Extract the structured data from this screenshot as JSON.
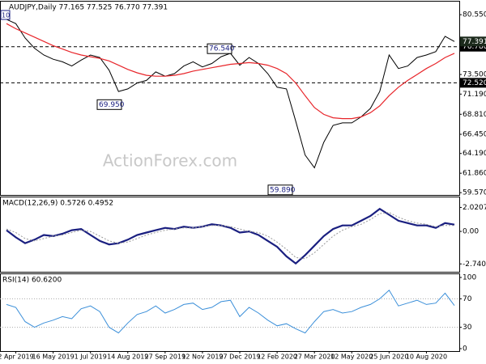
{
  "chart_data": [
    {
      "type": "line",
      "title": "AUDJPY,Daily  77.165 77.525 76.770 77.391",
      "badge": "10",
      "watermark": "ActionForex.com",
      "ylim": [
        59.3,
        81.9
      ],
      "yticks": [
        {
          "value": 80.55,
          "label": "80.550"
        },
        {
          "value": 73.5,
          "label": "73.500"
        },
        {
          "value": 71.19,
          "label": "71.190"
        },
        {
          "value": 68.81,
          "label": "68.810"
        },
        {
          "value": 66.45,
          "label": "66.450"
        },
        {
          "value": 64.19,
          "label": "64.190"
        },
        {
          "value": 61.86,
          "label": "61.860"
        },
        {
          "value": 59.57,
          "label": "59.570"
        }
      ],
      "levels": [
        {
          "value": 76.78,
          "label": "76.780"
        },
        {
          "value": 72.52,
          "label": "72.520"
        }
      ],
      "last": {
        "value": 77.391,
        "label": "77.391"
      },
      "annotations": [
        {
          "value": 76.54,
          "label": "76.540"
        },
        {
          "value": 69.95,
          "label": "69.950"
        },
        {
          "value": 59.89,
          "label": "59.890"
        }
      ],
      "series": [
        {
          "name": "AUDJPY",
          "color": "#000000",
          "width": 1,
          "values": [
            80.0,
            79.5,
            77.8,
            76.6,
            75.8,
            75.3,
            75.0,
            74.5,
            75.2,
            75.8,
            75.5,
            74.0,
            71.5,
            71.8,
            72.5,
            72.8,
            73.8,
            73.3,
            73.6,
            74.5,
            75.0,
            74.4,
            74.8,
            75.6,
            76.0,
            74.6,
            75.5,
            74.8,
            73.6,
            72.0,
            71.8,
            68.0,
            64.0,
            62.5,
            65.5,
            67.5,
            67.8,
            67.8,
            68.5,
            69.5,
            71.5,
            75.8,
            74.2,
            74.5,
            75.5,
            75.8,
            76.2,
            78.0,
            77.39
          ]
        },
        {
          "name": "MA",
          "color": "#e8262b",
          "width": 1.2,
          "values": [
            79.5,
            78.9,
            78.4,
            77.9,
            77.4,
            76.9,
            76.5,
            76.1,
            75.8,
            75.6,
            75.4,
            75.1,
            74.6,
            74.1,
            73.7,
            73.4,
            73.3,
            73.3,
            73.4,
            73.6,
            73.9,
            74.1,
            74.3,
            74.5,
            74.7,
            74.8,
            74.9,
            74.8,
            74.6,
            74.2,
            73.6,
            72.5,
            71.0,
            69.6,
            68.8,
            68.4,
            68.3,
            68.3,
            68.5,
            69.0,
            69.8,
            71.0,
            72.0,
            72.8,
            73.5,
            74.2,
            74.8,
            75.5,
            76.0
          ]
        }
      ]
    },
    {
      "type": "line",
      "title": "MACD(12,26,9) 0.5726 0.4952",
      "ylim": [
        -3.2,
        2.8
      ],
      "yticks": [
        {
          "value": 2.0207,
          "label": "2.0207"
        },
        {
          "value": 0,
          "label": "0.00"
        },
        {
          "value": -2.7404,
          "label": "-2.7404"
        }
      ],
      "series": [
        {
          "name": "MACD",
          "color": "#1a1f80",
          "width": 2.2,
          "values": [
            0.1,
            -0.5,
            -1.0,
            -0.7,
            -0.3,
            -0.4,
            -0.2,
            0.1,
            0.2,
            -0.3,
            -0.8,
            -1.1,
            -1.0,
            -0.7,
            -0.3,
            -0.1,
            0.1,
            0.3,
            0.2,
            0.4,
            0.3,
            0.4,
            0.6,
            0.5,
            0.3,
            -0.1,
            0.0,
            -0.3,
            -0.8,
            -1.3,
            -2.1,
            -2.7,
            -2.0,
            -1.2,
            -0.4,
            0.2,
            0.5,
            0.5,
            0.9,
            1.3,
            1.9,
            1.4,
            0.9,
            0.7,
            0.5,
            0.5,
            0.3,
            0.7,
            0.57
          ]
        },
        {
          "name": "Signal",
          "color": "#999999",
          "width": 1,
          "dash": true,
          "values": [
            0.2,
            -0.1,
            -0.6,
            -0.8,
            -0.6,
            -0.4,
            -0.3,
            -0.1,
            0.1,
            0.0,
            -0.4,
            -0.8,
            -1.0,
            -0.9,
            -0.6,
            -0.3,
            -0.1,
            0.1,
            0.2,
            0.3,
            0.3,
            0.4,
            0.5,
            0.5,
            0.4,
            0.2,
            0.0,
            -0.1,
            -0.4,
            -0.9,
            -1.5,
            -2.2,
            -2.3,
            -1.8,
            -1.1,
            -0.4,
            0.1,
            0.4,
            0.6,
            1.0,
            1.5,
            1.6,
            1.2,
            0.9,
            0.7,
            0.6,
            0.4,
            0.5,
            0.5
          ]
        }
      ]
    },
    {
      "type": "line",
      "title": "RSI(14) 60.6200",
      "ylim": [
        0,
        100
      ],
      "yticks": [
        100,
        70,
        30,
        0
      ],
      "levels": [
        70,
        30
      ],
      "categories": [
        null,
        "2 Apr 2019",
        null,
        null,
        null,
        "16 May 2019",
        null,
        null,
        null,
        "1 Jul 2019",
        null,
        null,
        null,
        "14 Aug 2019",
        null,
        null,
        null,
        "27 Sep 2019",
        null,
        null,
        null,
        "12 Nov 2019",
        null,
        null,
        null,
        "27 Dec 2019",
        null,
        null,
        null,
        "12 Feb 2020",
        null,
        null,
        null,
        "27 Mar 2020",
        null,
        null,
        null,
        "12 May 2020",
        null,
        null,
        null,
        "25 Jun 2020",
        null,
        null,
        null,
        "10 Aug 2020",
        null,
        null,
        null
      ],
      "series": [
        {
          "name": "RSI",
          "color": "#3b8fd9",
          "width": 1,
          "values": [
            62,
            58,
            38,
            30,
            36,
            40,
            45,
            42,
            56,
            60,
            52,
            30,
            22,
            36,
            48,
            52,
            60,
            50,
            55,
            62,
            64,
            55,
            58,
            66,
            68,
            45,
            58,
            50,
            40,
            32,
            35,
            28,
            22,
            38,
            52,
            55,
            50,
            52,
            58,
            62,
            70,
            82,
            60,
            64,
            68,
            62,
            64,
            78,
            60.62
          ]
        }
      ]
    }
  ]
}
